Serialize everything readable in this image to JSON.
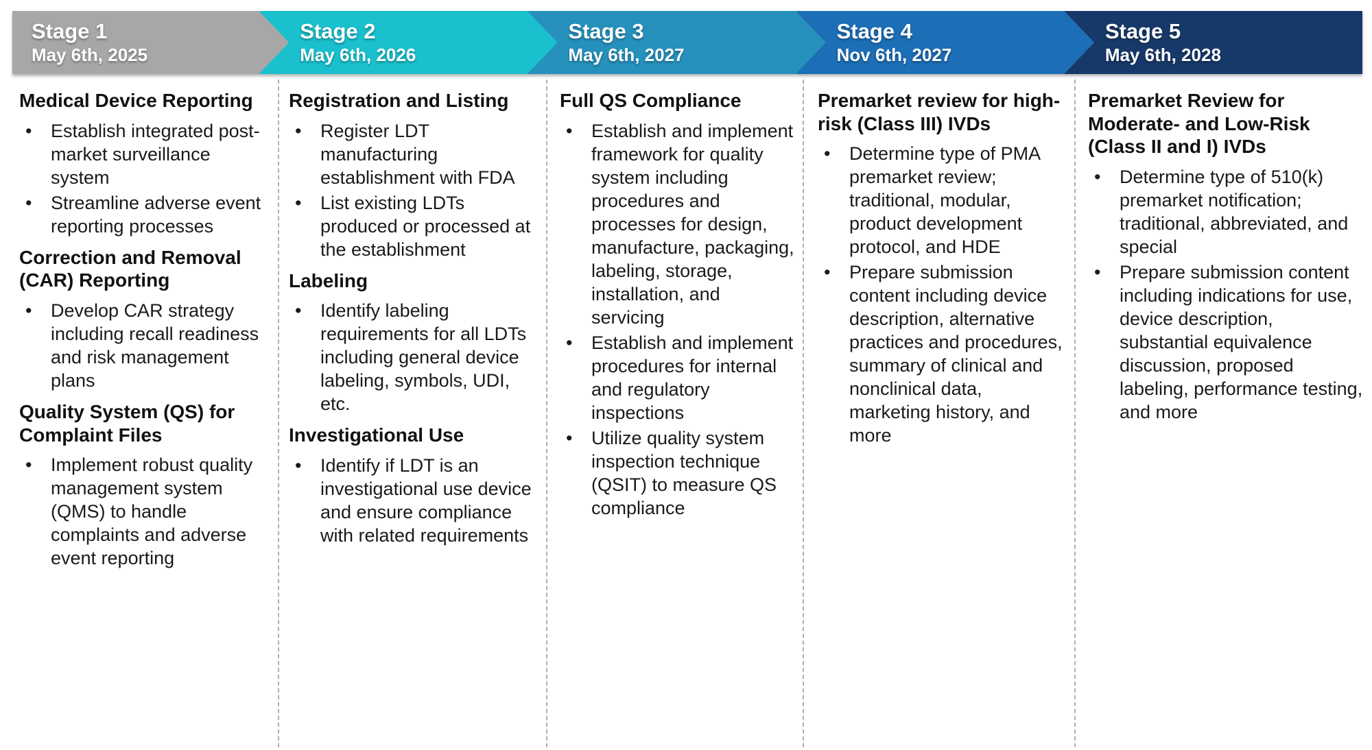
{
  "bullet_char": "•",
  "separator_color": "#adadad",
  "stages": [
    {
      "label": "Stage 1",
      "date": "May 6th, 2025",
      "color": "#a7a7a7",
      "sections": [
        {
          "heading": "Medical Device Reporting",
          "bullets": [
            "Establish integrated post-market surveillance system",
            "Streamline adverse event reporting processes"
          ]
        },
        {
          "heading": "Correction and Removal (CAR) Reporting",
          "bullets": [
            "Develop CAR strategy including recall readiness and risk management plans"
          ]
        },
        {
          "heading": "Quality System (QS) for Complaint Files",
          "bullets": [
            "Implement robust quality management system (QMS) to handle complaints and adverse event reporting"
          ]
        }
      ]
    },
    {
      "label": "Stage 2",
      "date": "May 6th, 2026",
      "color": "#1ac0cd",
      "sections": [
        {
          "heading": "Registration and Listing",
          "bullets": [
            "Register LDT manufacturing establishment with FDA",
            "List existing LDTs produced or processed at the establishment"
          ]
        },
        {
          "heading": "Labeling",
          "bullets": [
            "Identify labeling requirements for all LDTs including general device labeling, symbols, UDI, etc."
          ]
        },
        {
          "heading": "Investigational Use",
          "bullets": [
            "Identify if LDT is an investigational use device and ensure compliance with related requirements"
          ]
        }
      ]
    },
    {
      "label": "Stage 3",
      "date": "May 6th, 2027",
      "color": "#2591bc",
      "sections": [
        {
          "heading": "Full QS Compliance",
          "bullets": [
            "Establish and implement framework for quality system including procedures and processes for design, manufacture, packaging, labeling, storage, installation, and servicing",
            "Establish and implement procedures for internal and regulatory inspections",
            "Utilize quality system inspection technique (QSIT) to measure QS compliance"
          ]
        }
      ]
    },
    {
      "label": "Stage 4",
      "date": "Nov 6th, 2027",
      "color": "#1c6eb6",
      "sections": [
        {
          "heading": "Premarket review for high-risk (Class III) IVDs",
          "bullets": [
            "Determine type of PMA premarket review; traditional, modular, product development protocol, and HDE",
            "Prepare submission content including device description, alternative practices and procedures, summary of clinical and nonclinical data, marketing history, and more"
          ]
        }
      ]
    },
    {
      "label": "Stage 5",
      "date": "May 6th, 2028",
      "color": "#173969",
      "sections": [
        {
          "heading": "Premarket Review for Moderate- and Low-Risk (Class II and I) IVDs",
          "bullets": [
            "Determine type of 510(k) premarket notification; traditional, abbreviated, and special",
            "Prepare submission content including indications for use, device description, substantial equivalence discussion, proposed labeling, performance testing, and more"
          ]
        }
      ]
    }
  ]
}
